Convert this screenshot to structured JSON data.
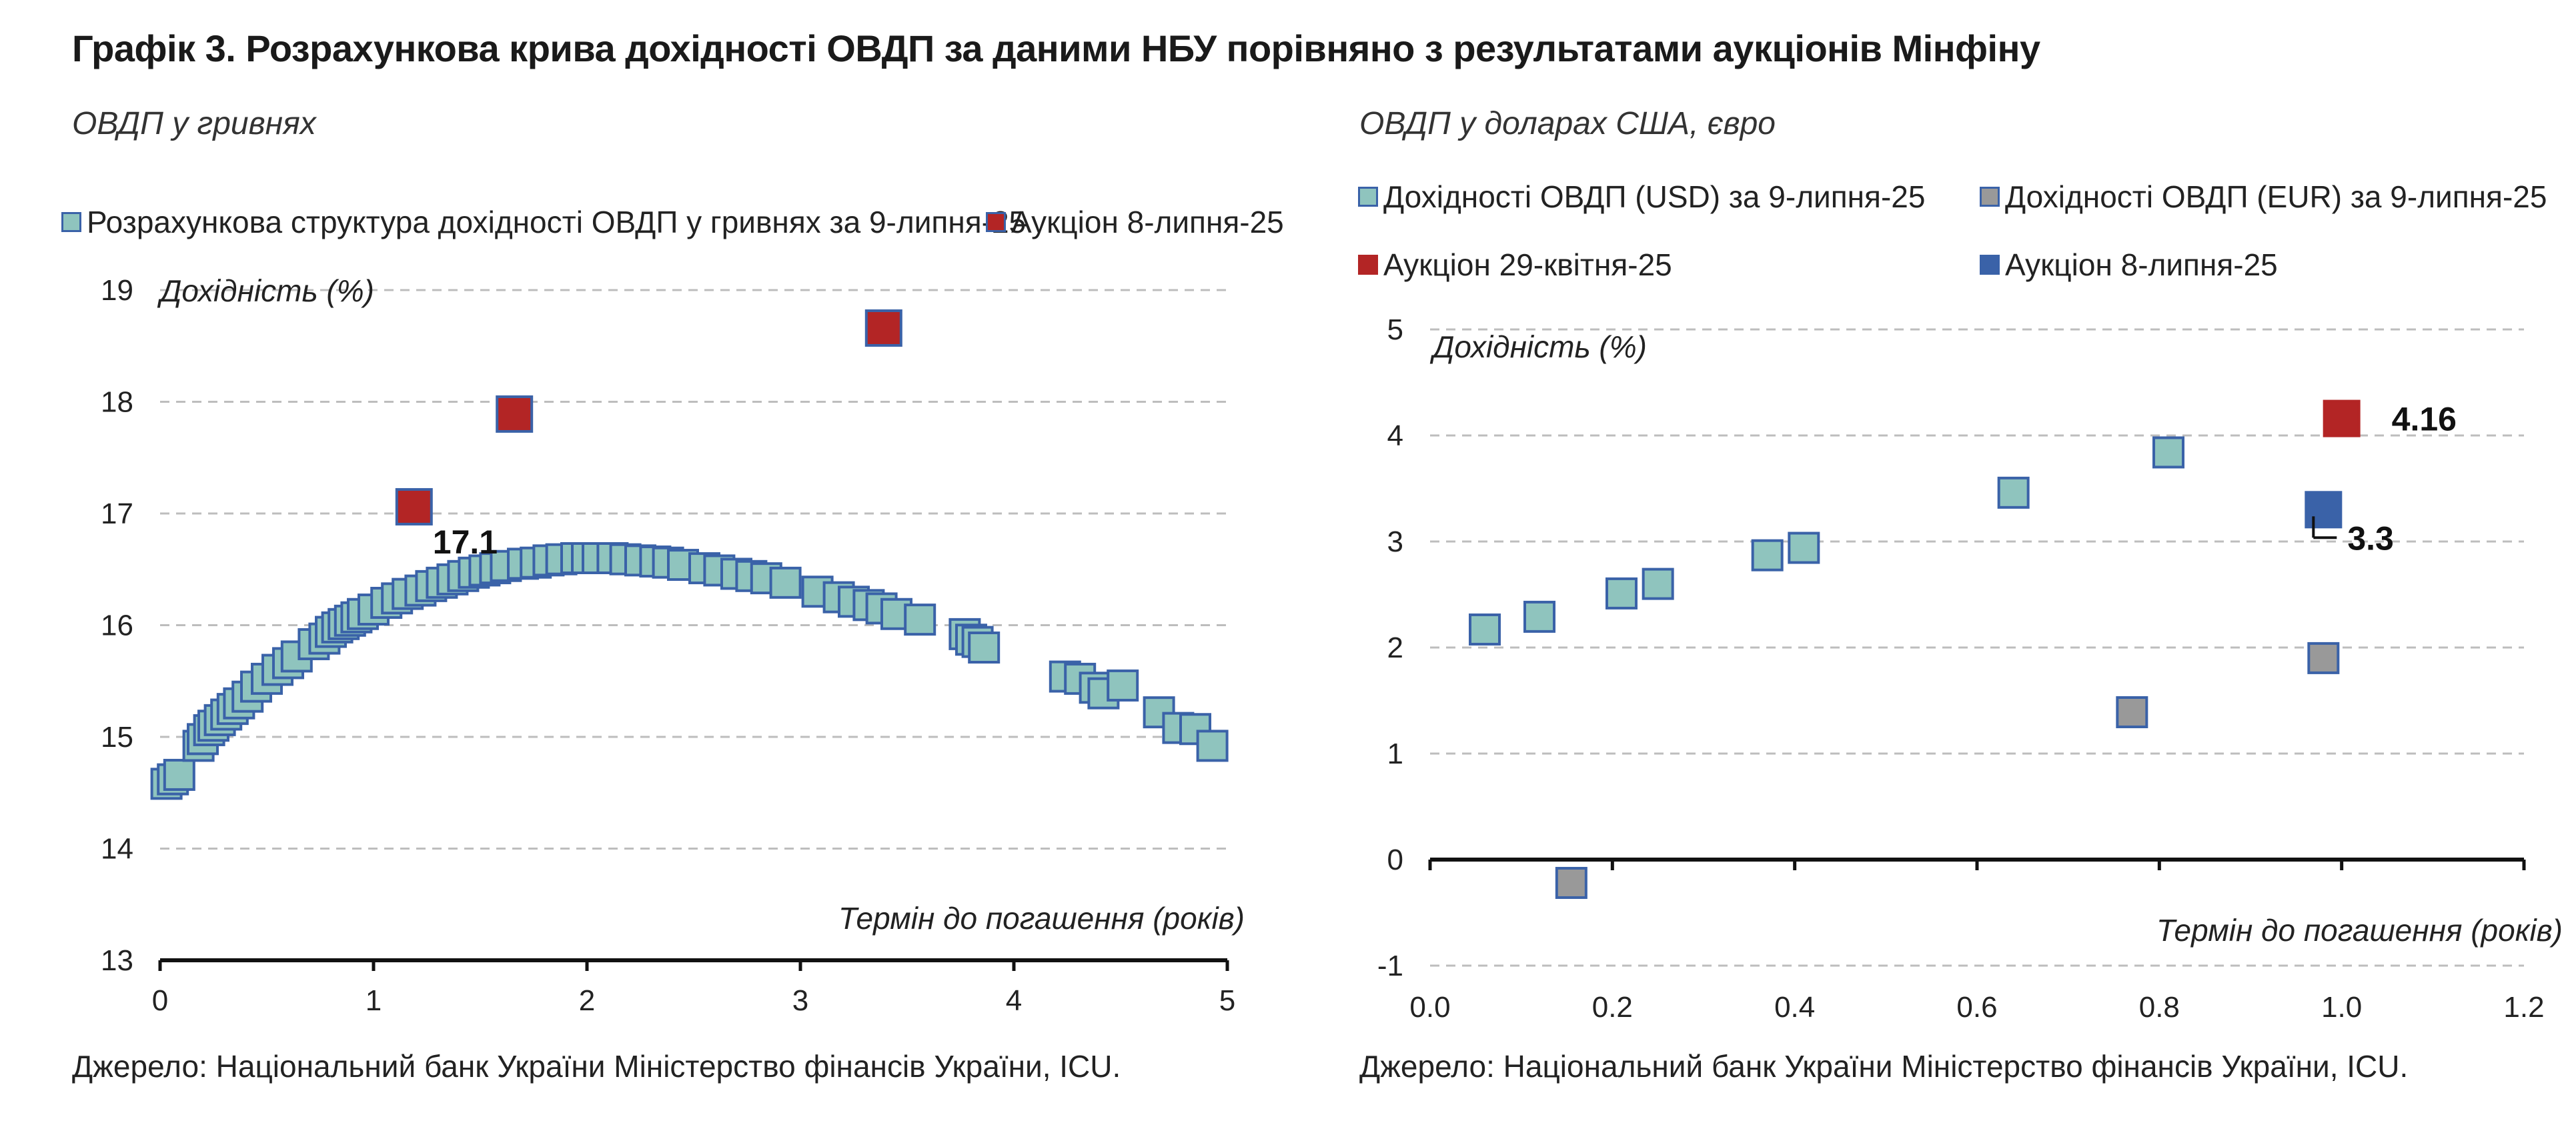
{
  "title": "Графік 3. Розрахункова крива дохідності ОВДП за даними НБУ порівняно з результатами аукціонів Мінфіну",
  "source_left": "Джерело: Національний банк України Міністерство фінансів України, ICU.",
  "source_right": "Джерело: Національний банк України Міністерство фінансів України, ICU.",
  "colors": {
    "teal_fill": "#8fc4be",
    "teal_stroke": "#3a62a8",
    "red": "#b32525",
    "blue": "#3a62a8",
    "grey": "#999999",
    "grid": "#bdbdbd"
  },
  "chart_data": [
    {
      "type": "scatter",
      "subtitle": "ОВДП у гривнях",
      "ylabel": "Дохідність (%)",
      "xlabel": "Термін до погашення (років)",
      "xlim": [
        0,
        5
      ],
      "ylim": [
        13,
        19
      ],
      "xticks": [
        "0",
        "1",
        "2",
        "3",
        "4",
        "5"
      ],
      "yticks": [
        "13",
        "14",
        "15",
        "16",
        "17",
        "18",
        "19"
      ],
      "grid": true,
      "legend_position": "top",
      "series": [
        {
          "name": "Розрахункова структура дохідності ОВДП у гривнях за 9-липня-25",
          "color": "#8fc4be",
          "points": [
            [
              0.03,
              14.58
            ],
            [
              0.06,
              14.62
            ],
            [
              0.09,
              14.66
            ],
            [
              0.18,
              14.92
            ],
            [
              0.2,
              14.98
            ],
            [
              0.23,
              15.06
            ],
            [
              0.25,
              15.1
            ],
            [
              0.28,
              15.15
            ],
            [
              0.31,
              15.2
            ],
            [
              0.34,
              15.25
            ],
            [
              0.37,
              15.3
            ],
            [
              0.41,
              15.36
            ],
            [
              0.45,
              15.45
            ],
            [
              0.5,
              15.52
            ],
            [
              0.55,
              15.6
            ],
            [
              0.6,
              15.66
            ],
            [
              0.64,
              15.72
            ],
            [
              0.72,
              15.83
            ],
            [
              0.77,
              15.88
            ],
            [
              0.8,
              15.94
            ],
            [
              0.83,
              15.98
            ],
            [
              0.86,
              16.01
            ],
            [
              0.89,
              16.04
            ],
            [
              0.92,
              16.07
            ],
            [
              0.95,
              16.1
            ],
            [
              1.0,
              16.14
            ],
            [
              1.06,
              16.2
            ],
            [
              1.11,
              16.24
            ],
            [
              1.16,
              16.28
            ],
            [
              1.22,
              16.31
            ],
            [
              1.27,
              16.35
            ],
            [
              1.32,
              16.38
            ],
            [
              1.37,
              16.41
            ],
            [
              1.42,
              16.44
            ],
            [
              1.47,
              16.47
            ],
            [
              1.52,
              16.49
            ],
            [
              1.57,
              16.51
            ],
            [
              1.62,
              16.53
            ],
            [
              1.7,
              16.55
            ],
            [
              1.76,
              16.56
            ],
            [
              1.82,
              16.58
            ],
            [
              1.88,
              16.59
            ],
            [
              1.95,
              16.6
            ],
            [
              2.0,
              16.6
            ],
            [
              2.05,
              16.6
            ],
            [
              2.12,
              16.6
            ],
            [
              2.18,
              16.59
            ],
            [
              2.25,
              16.58
            ],
            [
              2.32,
              16.57
            ],
            [
              2.38,
              16.56
            ],
            [
              2.45,
              16.54
            ],
            [
              2.55,
              16.51
            ],
            [
              2.62,
              16.49
            ],
            [
              2.7,
              16.46
            ],
            [
              2.77,
              16.44
            ],
            [
              2.84,
              16.42
            ],
            [
              2.93,
              16.38
            ],
            [
              3.08,
              16.3
            ],
            [
              3.18,
              16.25
            ],
            [
              3.25,
              16.21
            ],
            [
              3.32,
              16.18
            ],
            [
              3.38,
              16.15
            ],
            [
              3.45,
              16.1
            ],
            [
              3.56,
              16.05
            ],
            [
              3.77,
              15.92
            ],
            [
              3.8,
              15.87
            ],
            [
              3.83,
              15.85
            ],
            [
              3.86,
              15.8
            ],
            [
              4.24,
              15.54
            ],
            [
              4.31,
              15.52
            ],
            [
              4.38,
              15.44
            ],
            [
              4.42,
              15.39
            ],
            [
              4.51,
              15.46
            ],
            [
              4.68,
              15.22
            ],
            [
              4.77,
              15.08
            ],
            [
              4.85,
              15.07
            ],
            [
              4.93,
              14.92
            ]
          ]
        },
        {
          "name": "Аукціон 8-липня-25",
          "color": "#b32525",
          "points": [
            [
              1.19,
              17.06
            ],
            [
              1.66,
              17.89
            ],
            [
              3.39,
              18.66
            ]
          ]
        }
      ],
      "annotations": [
        {
          "text": "17.1",
          "x": 1.19,
          "y": 17.06
        }
      ]
    },
    {
      "type": "scatter",
      "subtitle": "ОВДП у доларах США, євро",
      "ylabel": "Дохідність (%)",
      "xlabel": "Термін до погашення (років)",
      "xlim": [
        0,
        1.2
      ],
      "ylim": [
        -1,
        5
      ],
      "xticks": [
        "0.0",
        "0.2",
        "0.4",
        "0.6",
        "0.8",
        "1.0",
        "1.2"
      ],
      "yticks": [
        "-1",
        "0",
        "1",
        "2",
        "3",
        "4",
        "5"
      ],
      "grid": true,
      "legend_position": "top",
      "series": [
        {
          "name": "Дохідності ОВДП (USD) за 9-липня-25",
          "color": "#8fc4be",
          "points": [
            [
              0.06,
              2.17
            ],
            [
              0.12,
              2.29
            ],
            [
              0.21,
              2.51
            ],
            [
              0.25,
              2.6
            ],
            [
              0.37,
              2.87
            ],
            [
              0.41,
              2.94
            ],
            [
              0.64,
              3.46
            ],
            [
              0.81,
              3.84
            ]
          ]
        },
        {
          "name": "Дохідності ОВДП (EUR) за 9-липня-25",
          "color": "#999999",
          "points": [
            [
              0.155,
              -0.22
            ],
            [
              0.77,
              1.39
            ],
            [
              0.98,
              1.9
            ]
          ]
        },
        {
          "name": "Аукціон 29-квітня-25",
          "color": "#b32525",
          "points": [
            [
              1.0,
              4.16
            ]
          ]
        },
        {
          "name": "Аукціон 8-липня-25",
          "color": "#3a62a8",
          "points": [
            [
              0.98,
              3.3
            ]
          ]
        }
      ],
      "annotations": [
        {
          "text": "4.16",
          "x": 1.0,
          "y": 4.16
        },
        {
          "text": "3.3",
          "x": 0.98,
          "y": 3.3
        }
      ]
    }
  ]
}
